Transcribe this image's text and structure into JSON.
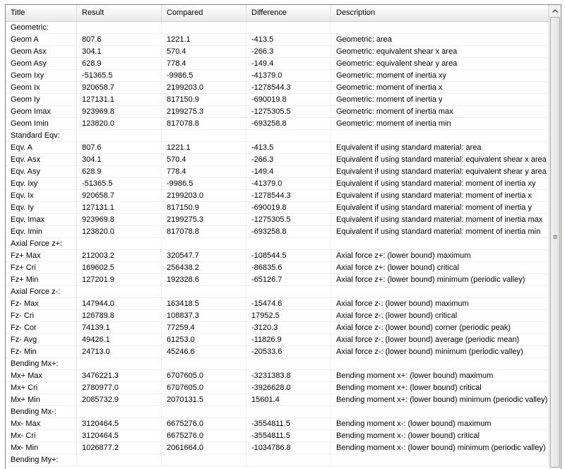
{
  "table": {
    "columns": [
      "Title",
      "Result",
      "Compared",
      "Difference",
      "Description"
    ],
    "rows": [
      [
        "Geometric:"
      ],
      [
        "Geom A",
        "807.6",
        "1221.1",
        "-413.5",
        "Geometric: area"
      ],
      [
        "Geom Asx",
        "304.1",
        "570.4",
        "-266.3",
        "Geometric: equivalent shear x area"
      ],
      [
        "Geom Asy",
        "628.9",
        "778.4",
        "-149.4",
        "Geometric: equivalent shear y area"
      ],
      [
        "Geom Ixy",
        "-51365.5",
        "-9986.5",
        "-41379.0",
        "Geometric: moment of inertia xy"
      ],
      [
        "Geom Ix",
        "920658.7",
        "2199203.0",
        "-1278544.3",
        "Geometric: moment of inertia x"
      ],
      [
        "Geom Iy",
        "127131.1",
        "817150.9",
        "-690019.8",
        "Geometric: moment of inertia y"
      ],
      [
        "Geom Imax",
        "923969.8",
        "2199275.3",
        "-1275305.5",
        "Geometric: moment of inertia max"
      ],
      [
        "Geom Imin",
        "123820.0",
        "817078.8",
        "-693258.8",
        "Geometric: moment of inertia min"
      ],
      [
        "Standard Eqv:"
      ],
      [
        "Eqv. A",
        "807.6",
        "1221.1",
        "-413.5",
        "Equivalent if using standard material: area"
      ],
      [
        "Eqv. Asx",
        "304.1",
        "570.4",
        "-266.3",
        "Equivalent if using standard material: equivalent shear x area"
      ],
      [
        "Eqv. Asy",
        "628.9",
        "778.4",
        "-149.4",
        "Equivalent if using standard material: equivalent shear y area"
      ],
      [
        "Eqv. Ixy",
        "-51365.5",
        "-9986.5",
        "-41379.0",
        "Equivalent if using standard material: moment of inertia xy"
      ],
      [
        "Eqv. Ix",
        "920658.7",
        "2199203.0",
        "-1278544.3",
        "Equivalent if using standard material: moment of inertia x"
      ],
      [
        "Eqv. Iy",
        "127131.1",
        "817150.9",
        "-690019.8",
        "Equivalent if using standard material: moment of inertia y"
      ],
      [
        "Eqv. Imax",
        "923969.8",
        "2199275.3",
        "-1275305.5",
        "Equivalent if using standard material: moment of inertia max"
      ],
      [
        "Eqv. Imin",
        "123820.0",
        "817078.8",
        "-693258.8",
        "Equivalent if using standard material: moment of inertia min"
      ],
      [
        "Axial Force z+:"
      ],
      [
        "Fz+ Max",
        "212003.2",
        "320547.7",
        "-108544.5",
        "Axial force z+: (lower bound) maximum"
      ],
      [
        "Fz+ Cri",
        "169602.5",
        "256438.2",
        "-86835.6",
        "Axial force z+: (lower bound) critical"
      ],
      [
        "Fz+ Min",
        "127201.9",
        "192328.6",
        "-65126.7",
        "Axial force z+: (lower bound) minimum (periodic valley)"
      ],
      [
        "Axial Force z-:"
      ],
      [
        "Fz- Max",
        "147944.0",
        "163418.5",
        "-15474.6",
        "Axial force z-: (lower bound) maximum"
      ],
      [
        "Fz- Cri",
        "126789.8",
        "108837.3",
        "17952.5",
        "Axial force z-: (lower bound) critical"
      ],
      [
        "Fz- Cor",
        "74139.1",
        "77259.4",
        "-3120.3",
        "Axial force z-: (lower bound) corner (periodic peak)"
      ],
      [
        "Fz- Avg",
        "49426.1",
        "61253.0",
        "-11826.9",
        "Axial force z-: (lower bound) average (periodic mean)"
      ],
      [
        "Fz- Min",
        "24713.0",
        "45246.6",
        "-20533.6",
        "Axial force z-: (lower bound) minimum (periodic valley)"
      ],
      [
        "Bending Mx+:"
      ],
      [
        "Mx+ Max",
        "3476221.3",
        "6707605.0",
        "-3231383.8",
        "Bending moment x+: (lower bound) maximum"
      ],
      [
        "Mx+ Cri",
        "2780977.0",
        "6707605.0",
        "-3926628.0",
        "Bending moment x+: (lower bound) critical"
      ],
      [
        "Mx+ Min",
        "2085732.9",
        "2070131.5",
        "15601.4",
        "Bending moment x+: (lower bound) minimum (periodic valley)"
      ],
      [
        "Bending Mx-:"
      ],
      [
        "Mx- Max",
        "3120464.5",
        "6675276.0",
        "-3554811.5",
        "Bending moment x-: (lower bound) maximum"
      ],
      [
        "Mx- Cri",
        "3120464.5",
        "6675276.0",
        "-3554811.5",
        "Bending moment x-: (lower bound) critical"
      ],
      [
        "Mx- Min",
        "1026877.2",
        "2061664.0",
        "-1034786.8",
        "Bending moment x-: (lower bound) minimum (periodic valley)"
      ],
      [
        "Bending My+:"
      ]
    ]
  }
}
